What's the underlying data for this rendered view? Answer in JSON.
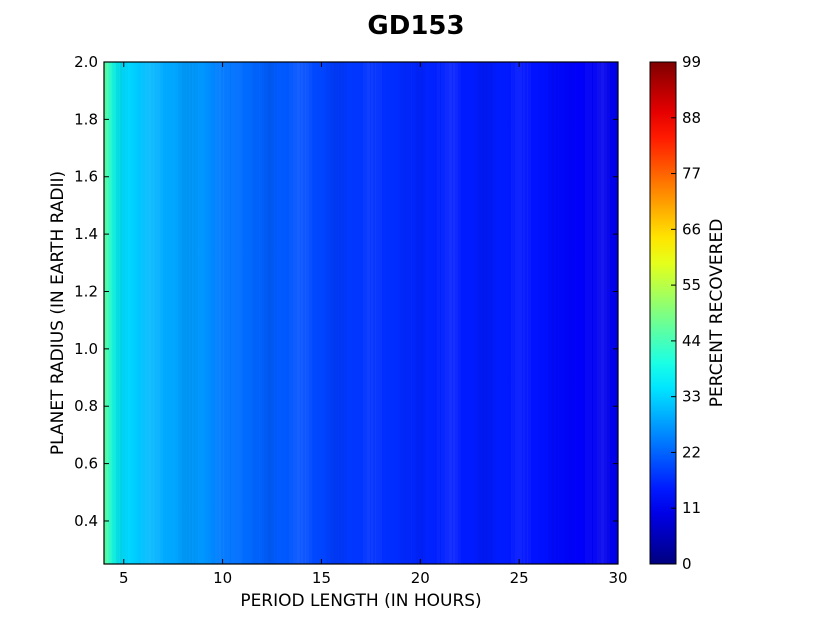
{
  "chart_data": {
    "type": "heatmap",
    "title": "GD153",
    "xlabel": "PERIOD LENGTH (IN HOURS)",
    "ylabel": "PLANET RADIUS (IN EARTH RADII)",
    "colorbar_label": "PERCENT RECOVERED",
    "colormap": "jet",
    "xlim": [
      4,
      30
    ],
    "ylim": [
      0.25,
      2.0
    ],
    "x_ticks": [
      5,
      10,
      15,
      20,
      25,
      30
    ],
    "x_tick_labels": [
      "5",
      "10",
      "15",
      "20",
      "25",
      "30"
    ],
    "y_ticks": [
      0.4,
      0.6,
      0.8,
      1.0,
      1.2,
      1.4,
      1.6,
      1.8,
      2.0
    ],
    "y_tick_labels": [
      "0.4",
      "0.6",
      "0.8",
      "1.0",
      "1.2",
      "1.4",
      "1.6",
      "1.8",
      "2.0"
    ],
    "colorbar_range": [
      0,
      99
    ],
    "colorbar_ticks": [
      0,
      11,
      22,
      33,
      44,
      55,
      66,
      77,
      88,
      99
    ],
    "colorbar_tick_labels": [
      "0",
      "11",
      "22",
      "33",
      "44",
      "55",
      "66",
      "77",
      "88",
      "99"
    ],
    "period_hours": [
      4,
      4.5,
      5,
      6,
      7,
      8,
      9,
      10,
      12,
      14,
      16,
      18,
      20,
      22,
      24,
      26,
      28,
      30
    ],
    "percent_recovered_by_period": [
      47,
      39,
      34,
      31,
      29,
      28,
      27,
      24,
      22,
      20,
      18,
      17,
      16,
      15,
      15,
      14,
      12,
      10
    ]
  }
}
